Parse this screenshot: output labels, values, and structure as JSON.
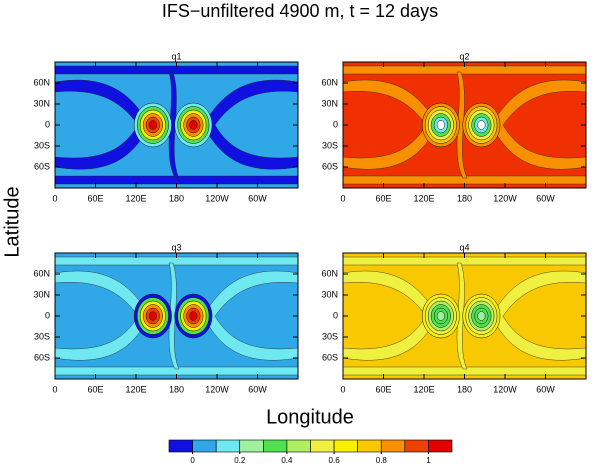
{
  "chart_data": {
    "type": "contour",
    "title": "IFS−unfiltered 4900 m, t = 12 days",
    "xlabel": "Longitude",
    "ylabel": "Latitude",
    "panels": [
      {
        "title": "q1",
        "color": "#30a8e8"
      },
      {
        "title": "q2",
        "color": "#f03000"
      },
      {
        "title": "q3",
        "color": "#30a8e8"
      },
      {
        "title": "q4",
        "color": "#f8c800"
      }
    ],
    "xlim": [
      0,
      360
    ],
    "xticks": [
      0,
      {
        "value": 60,
        "label": "60E"
      },
      {
        "value": 120,
        "label": "120E"
      },
      180,
      {
        "value": 240,
        "label": "120W"
      },
      {
        "value": 300,
        "label": "60W"
      }
    ],
    "ylim": [
      -90,
      90
    ],
    "yticks": [
      {
        "value": 60,
        "label": "60N"
      },
      {
        "value": 30,
        "label": "30N"
      },
      0,
      {
        "value": -30,
        "label": "30S"
      },
      {
        "value": -60,
        "label": "60S"
      }
    ],
    "colorbar": {
      "lim": [
        -0.1,
        1.1
      ],
      "ticks": [
        0,
        0.2,
        0.4,
        0.6,
        0.8,
        1
      ],
      "colors": [
        "#1010e0",
        "#30a8e8",
        "#70e8f0",
        "#a0f0a0",
        "#50e050",
        "#b0f060",
        "#f0f040",
        "#f8f000",
        "#f8c800",
        "#f89000",
        "#f04000",
        "#e00000"
      ]
    }
  }
}
